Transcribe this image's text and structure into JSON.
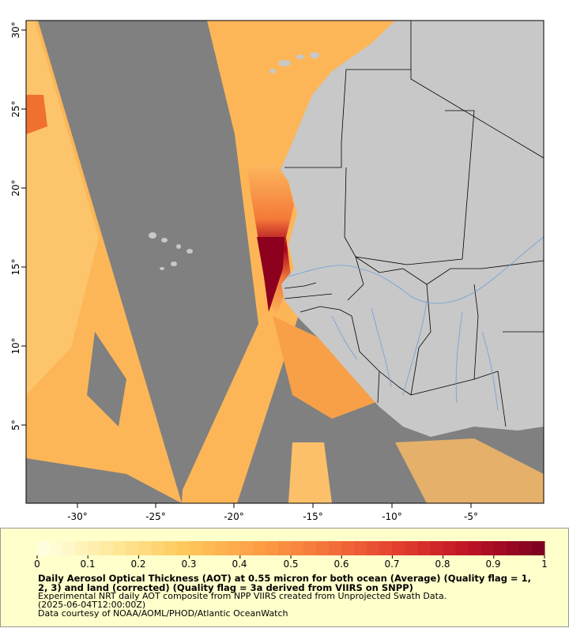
{
  "map": {
    "x_ticks": [
      "-30°",
      "-25°",
      "-20°",
      "-15°",
      "-10°",
      "-5°"
    ],
    "y_ticks": [
      "30°",
      "25°",
      "20°",
      "15°",
      "10°",
      "5°"
    ],
    "colors": {
      "nodata": "#808080",
      "land": "#c8c8c8",
      "rivers": "#6f9fd8",
      "borders": "#000000"
    }
  },
  "legend": {
    "ticks": [
      "0",
      "0.1",
      "0.2",
      "0.3",
      "0.4",
      "0.5",
      "0.6",
      "0.7",
      "0.8",
      "0.9",
      "1"
    ],
    "title": "Daily Aerosol Optical Thickness (AOT) at 0.55 micron for both ocean (Average) (Quality flag = 1, 2, 3) and land (corrected) (Quality flag = 3a derived from VIIRS on SNPP)",
    "line1": "Experimental NRT daily AOT composite from NPP VIIRS created from Unprojected Swath Data.",
    "line2": "(2025-06-04T12:00:00Z)",
    "line3": "Data courtesy of NOAA/AOML/PHOD/Atlantic OceanWatch",
    "color_stops": [
      "#ffffe0",
      "#ffe89a",
      "#ffc85a",
      "#fda046",
      "#f4743a",
      "#e3402f",
      "#c01424",
      "#7f0020"
    ]
  }
}
